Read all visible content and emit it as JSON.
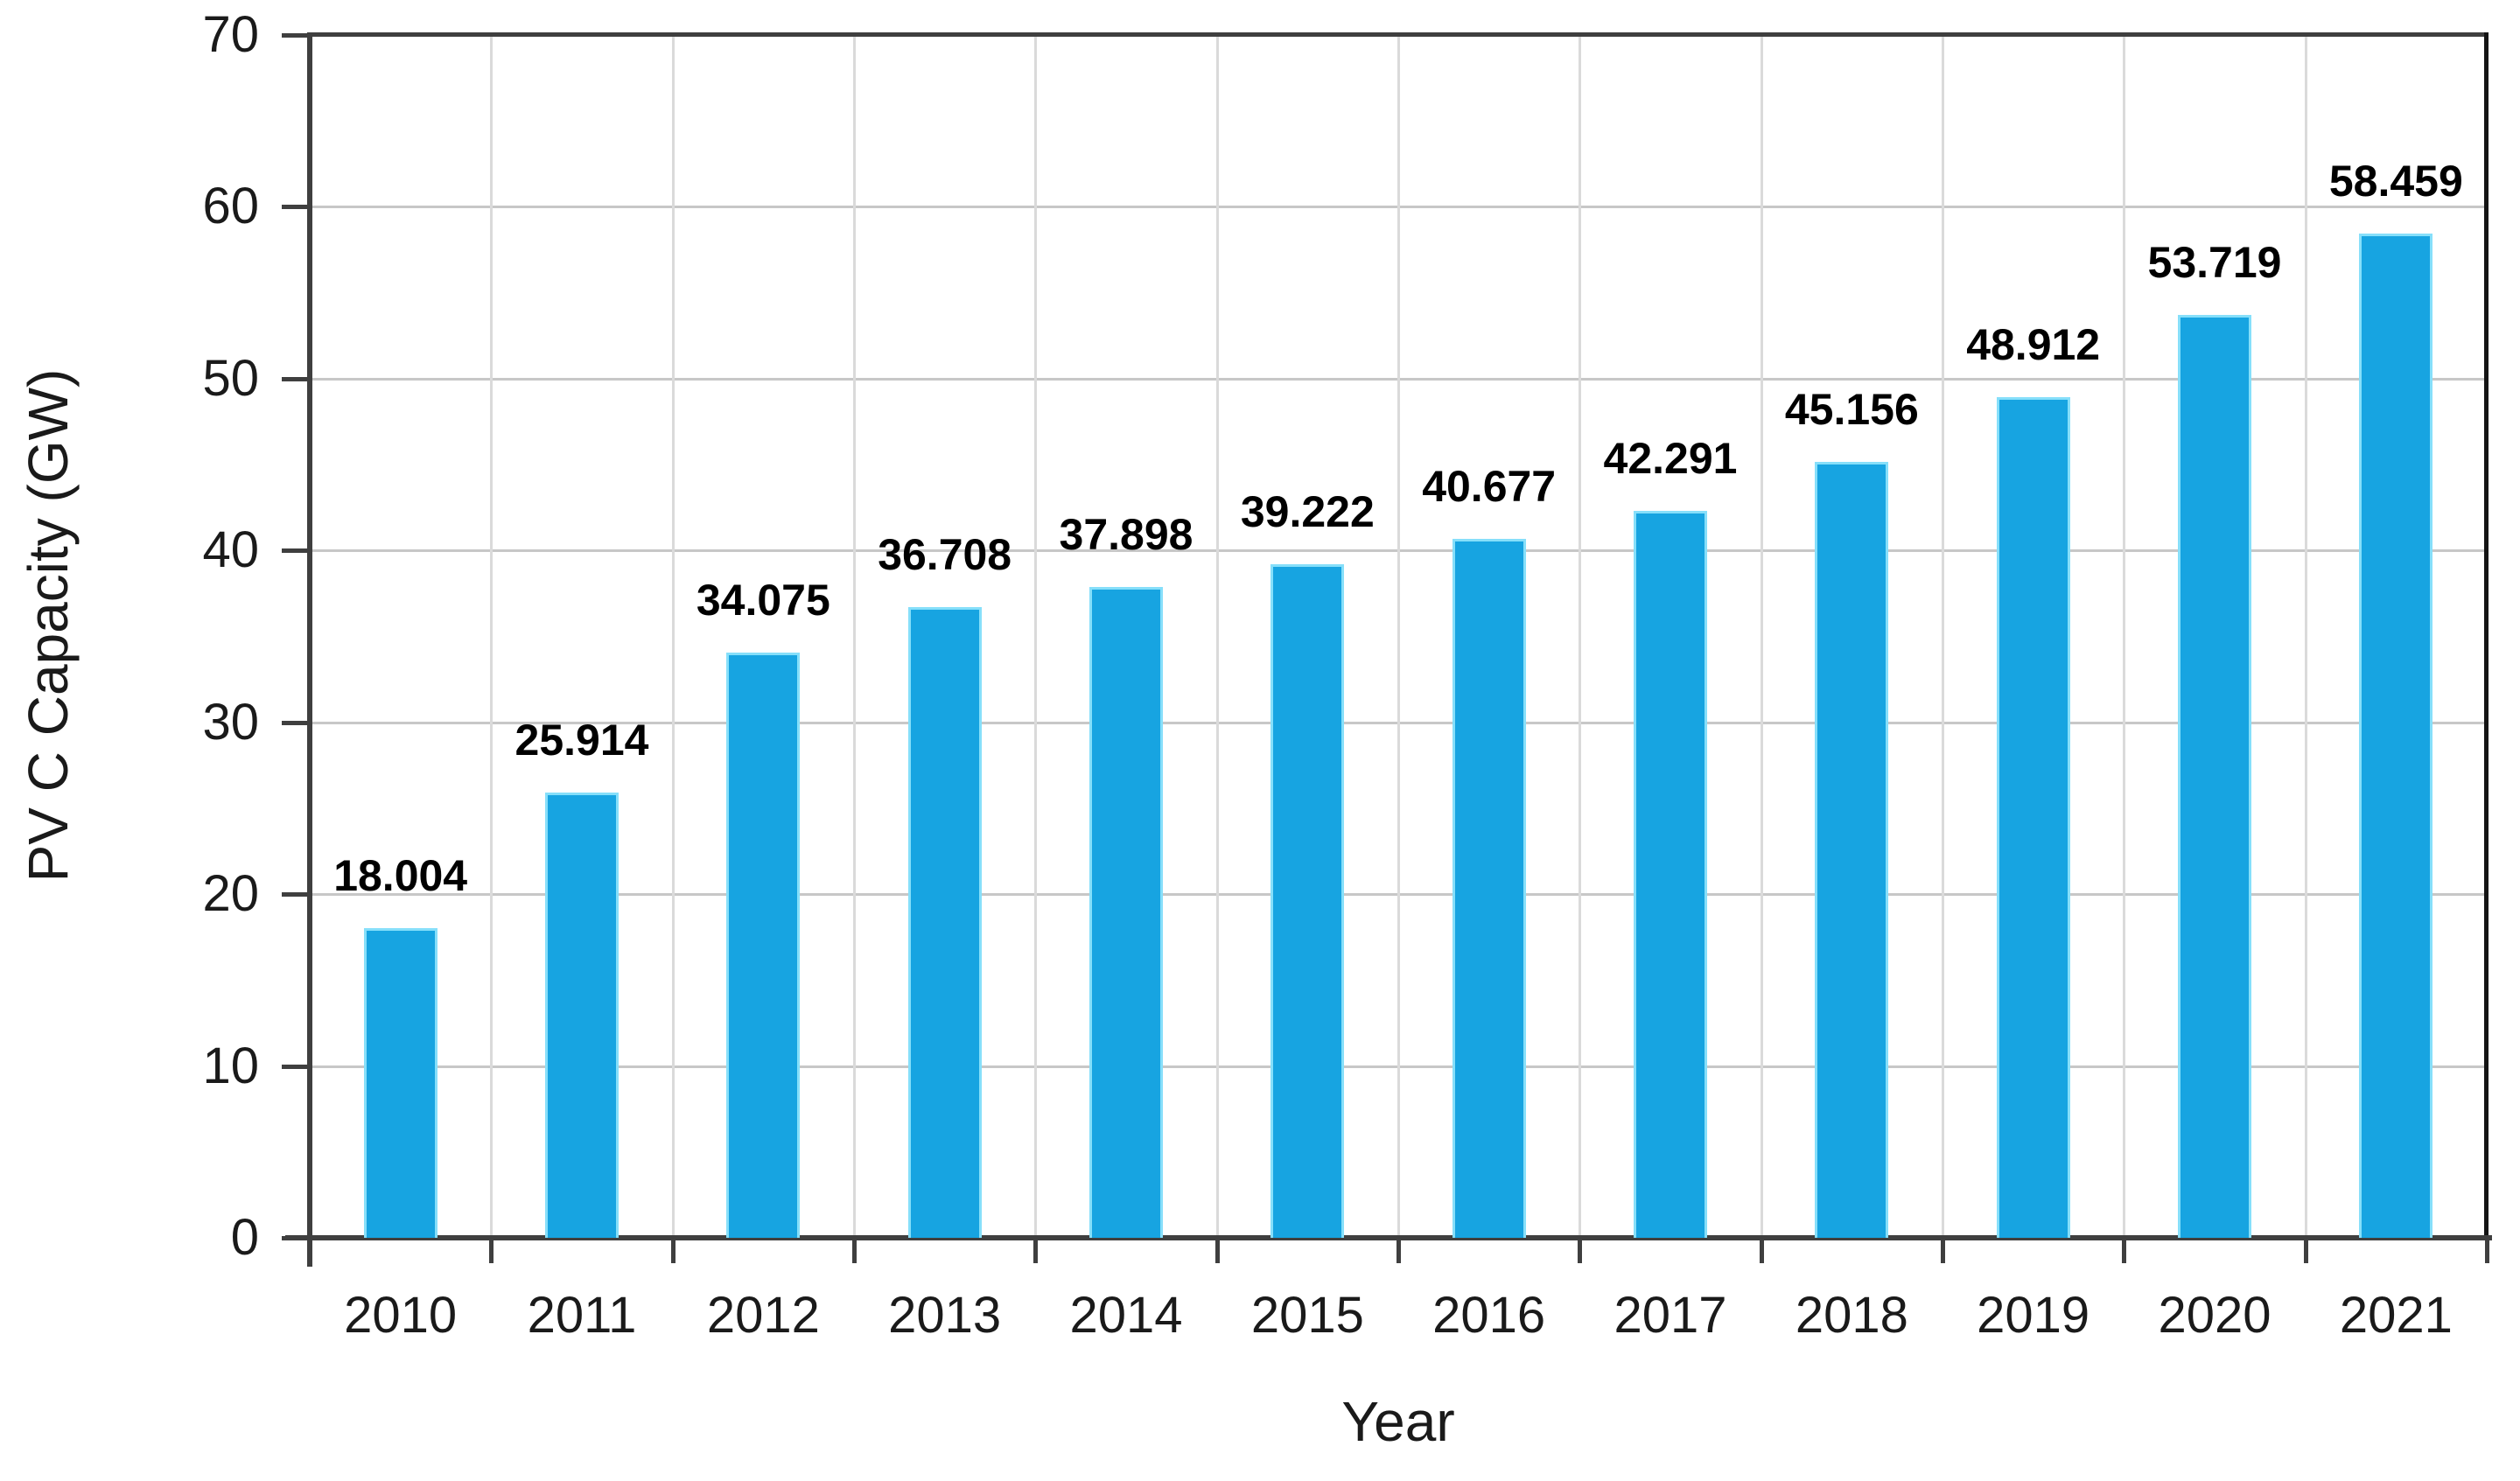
{
  "chart_data": {
    "type": "bar",
    "title": "",
    "xlabel": "Year",
    "ylabel": "PV C Capacity (GW)",
    "categories": [
      "2010",
      "2011",
      "2012",
      "2013",
      "2014",
      "2015",
      "2016",
      "2017",
      "2018",
      "2019",
      "2020",
      "2021"
    ],
    "series": [
      {
        "name": "PV C Capacity (GW)",
        "values": [
          18.004,
          25.914,
          34.075,
          36.708,
          37.898,
          39.222,
          40.677,
          42.291,
          45.156,
          48.912,
          53.719,
          58.459
        ]
      }
    ],
    "value_labels": [
      "18.004",
      "25.914",
      "34.075",
      "36.708",
      "37.898",
      "39.222",
      "40.677",
      "42.291",
      "45.156",
      "48.912",
      "53.719",
      "58.459"
    ],
    "ylim": [
      0,
      70
    ],
    "ytick_labels": [
      "0",
      "10",
      "20",
      "30",
      "40",
      "50",
      "60",
      "70"
    ],
    "ytick_values": [
      0,
      10,
      20,
      30,
      40,
      50,
      60,
      70
    ],
    "grid": "horizontal and vertical gridlines, plot border on top and right",
    "legend_position": "none",
    "colors": {
      "bar_fill": "#17A4E1",
      "bar_edge": "#86DFFA",
      "axis": "#3F3F3F",
      "plot_border_right": "#141414",
      "gridline_horizontal": "#C7C7C7",
      "gridline_vertical": "#DADADA",
      "text": "#1A1A1A",
      "data_label": "#000000",
      "background": "#FFFFFF"
    }
  }
}
